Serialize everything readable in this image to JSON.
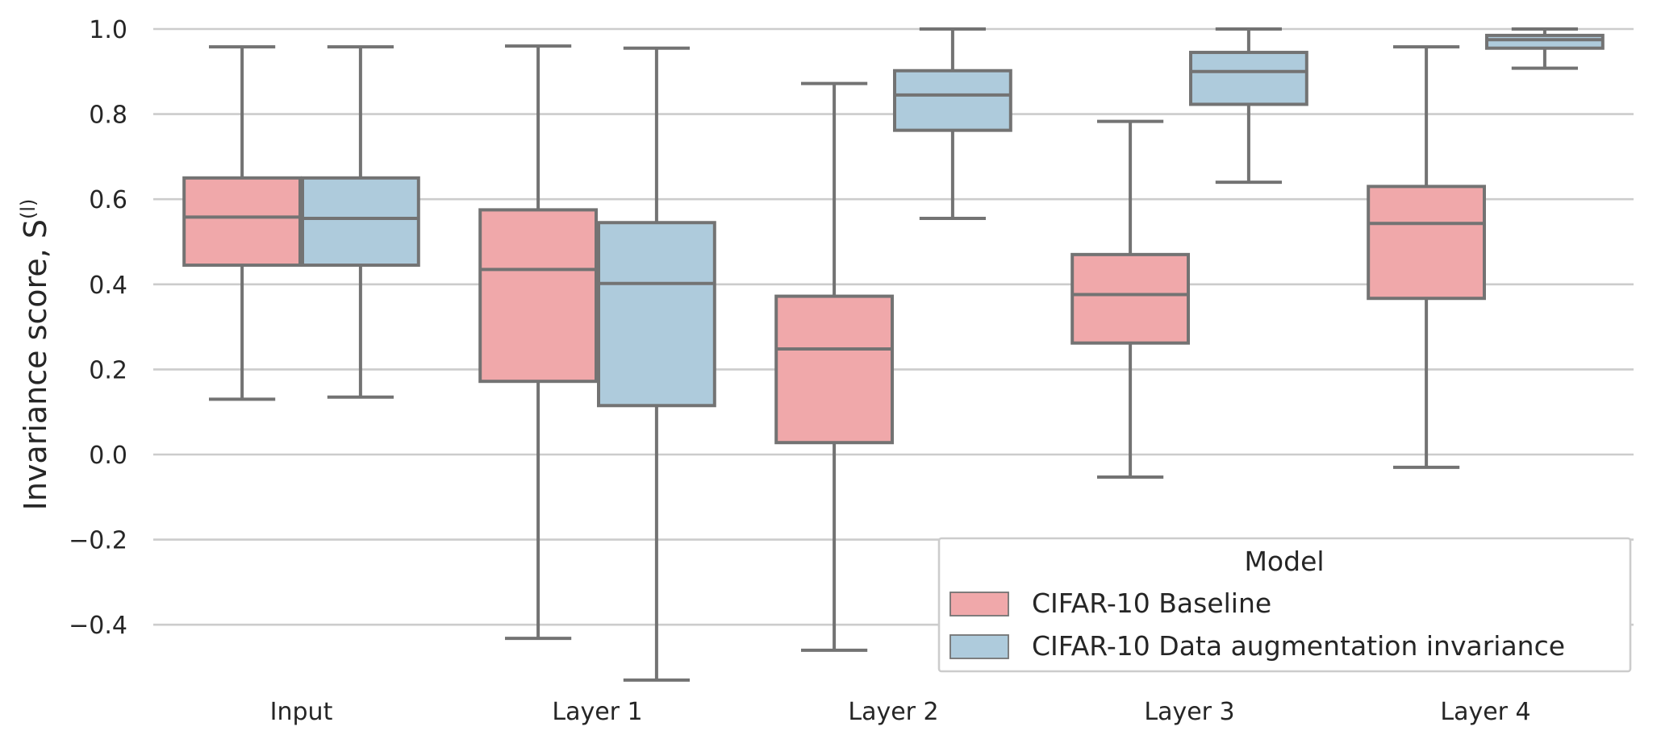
{
  "chart_data": {
    "type": "box",
    "ylabel": "Invariance score, S",
    "ylabel_superscript": "(l)",
    "categories": [
      "Input",
      "Layer 1",
      "Layer 2",
      "Layer 3",
      "Layer 4"
    ],
    "yticks": [
      "1.0",
      "0.8",
      "0.6",
      "0.4",
      "0.2",
      "0.0",
      "−0.2",
      "−0.4"
    ],
    "ylim": [
      -0.53,
      1.0
    ],
    "grid": true,
    "legend": {
      "title": "Model",
      "placement": "lower-right"
    },
    "series": [
      {
        "name": "CIFAR-10 Baseline",
        "color": "#f0a8aa",
        "boxes": [
          {
            "whislo": 0.13,
            "q1": 0.445,
            "med": 0.558,
            "q3": 0.65,
            "whishi": 0.958
          },
          {
            "whislo": -0.432,
            "q1": 0.172,
            "med": 0.435,
            "q3": 0.575,
            "whishi": 0.96
          },
          {
            "whislo": -0.46,
            "q1": 0.028,
            "med": 0.248,
            "q3": 0.372,
            "whishi": 0.872
          },
          {
            "whislo": -0.053,
            "q1": 0.262,
            "med": 0.376,
            "q3": 0.47,
            "whishi": 0.783
          },
          {
            "whislo": -0.03,
            "q1": 0.367,
            "med": 0.543,
            "q3": 0.63,
            "whishi": 0.958
          }
        ]
      },
      {
        "name": "CIFAR-10 Data augmentation invariance",
        "color": "#aecbdc",
        "boxes": [
          {
            "whislo": 0.135,
            "q1": 0.445,
            "med": 0.555,
            "q3": 0.65,
            "whishi": 0.958
          },
          {
            "whislo": -0.53,
            "q1": 0.115,
            "med": 0.402,
            "q3": 0.545,
            "whishi": 0.955
          },
          {
            "whislo": 0.555,
            "q1": 0.762,
            "med": 0.845,
            "q3": 0.902,
            "whishi": 1.0
          },
          {
            "whislo": 0.64,
            "q1": 0.823,
            "med": 0.9,
            "q3": 0.945,
            "whishi": 1.0
          },
          {
            "whislo": 0.908,
            "q1": 0.955,
            "med": 0.975,
            "q3": 0.985,
            "whishi": 1.0
          }
        ]
      }
    ]
  }
}
